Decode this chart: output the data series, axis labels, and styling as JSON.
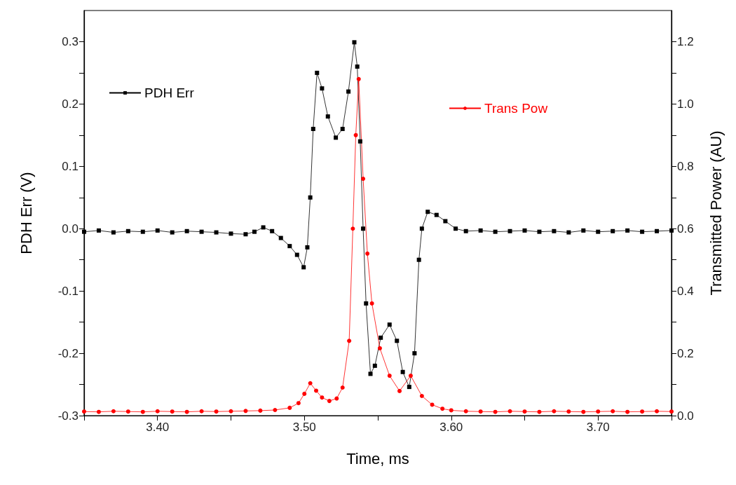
{
  "chart_data": {
    "type": "line",
    "xlabel": "Time, ms",
    "ylabel": "PDH Err (V)",
    "y2label": "Transmitted Power (AU)",
    "xlim": [
      3.35,
      3.75
    ],
    "ylim": [
      -0.3,
      0.35
    ],
    "y2lim": [
      0,
      1.3
    ],
    "xticks": [
      {
        "value": 3.35,
        "label": null
      },
      {
        "value": 3.4,
        "label": "3.40"
      },
      {
        "value": 3.45,
        "label": null
      },
      {
        "value": 3.5,
        "label": "3.50"
      },
      {
        "value": 3.55,
        "label": null
      },
      {
        "value": 3.6,
        "label": "3.60"
      },
      {
        "value": 3.65,
        "label": null
      },
      {
        "value": 3.7,
        "label": "3.70"
      },
      {
        "value": 3.75,
        "label": null
      }
    ],
    "yticks": [
      -0.3,
      {
        "value": -0.25,
        "label": null
      },
      -0.2,
      {
        "value": -0.15,
        "label": null
      },
      -0.1,
      {
        "value": -0.05,
        "label": null
      },
      {
        "value": 0,
        "label": "0.0"
      },
      {
        "value": 0.05,
        "label": null
      },
      0.1,
      {
        "value": 0.15,
        "label": null
      },
      0.2,
      {
        "value": 0.25,
        "label": null
      },
      0.3
    ],
    "y2ticks": [
      {
        "value": 0,
        "label": "0.0"
      },
      {
        "value": 0.1,
        "label": null
      },
      0.2,
      {
        "value": 0.3,
        "label": null
      },
      0.4,
      {
        "value": 0.5,
        "label": null
      },
      0.6,
      {
        "value": 0.7,
        "label": null
      },
      0.8,
      {
        "value": 0.9,
        "label": null
      },
      {
        "value": 1,
        "label": "1.0"
      },
      {
        "value": 1.1,
        "label": null
      },
      1.2
    ],
    "grid": false,
    "legend": "top",
    "line_style": "solid",
    "series": [
      {
        "name": "PDH Err",
        "color": "#000000",
        "marker": "square",
        "x": [
          3.35,
          3.36,
          3.37,
          3.38,
          3.39,
          3.4,
          3.41,
          3.42,
          3.43,
          3.44,
          3.45,
          3.46,
          3.466,
          3.472,
          3.478,
          3.484,
          3.49,
          3.495,
          3.4995,
          3.502,
          3.504,
          3.506,
          3.5086,
          3.512,
          3.516,
          3.5214,
          3.526,
          3.53,
          3.534,
          3.536,
          3.538,
          3.54,
          3.542,
          3.545,
          3.548,
          3.552,
          3.558,
          3.563,
          3.567,
          3.5714,
          3.575,
          3.578,
          3.58,
          3.584,
          3.59,
          3.596,
          3.603,
          3.61,
          3.62,
          3.63,
          3.64,
          3.65,
          3.66,
          3.67,
          3.68,
          3.69,
          3.7,
          3.71,
          3.72,
          3.73,
          3.74,
          3.75
        ],
        "values": [
          -0.005,
          -0.003,
          -0.006,
          -0.004,
          -0.005,
          -0.003,
          -0.006,
          -0.004,
          -0.005,
          -0.006,
          -0.008,
          -0.009,
          -0.005,
          0.002,
          -0.004,
          -0.015,
          -0.028,
          -0.042,
          -0.062,
          -0.03,
          0.05,
          0.16,
          0.25,
          0.225,
          0.18,
          0.146,
          0.16,
          0.22,
          0.299,
          0.26,
          0.14,
          0.0,
          -0.12,
          -0.233,
          -0.22,
          -0.175,
          -0.154,
          -0.18,
          -0.23,
          -0.254,
          -0.2,
          -0.05,
          0.0,
          0.027,
          0.022,
          0.012,
          0.0,
          -0.004,
          -0.003,
          -0.005,
          -0.004,
          -0.003,
          -0.005,
          -0.004,
          -0.006,
          -0.003,
          -0.005,
          -0.004,
          -0.003,
          -0.005,
          -0.004,
          -0.003
        ]
      },
      {
        "name": "Trans Pow",
        "color": "#ff0000",
        "marker": "circle",
        "axis": "y2",
        "x": [
          3.35,
          3.36,
          3.37,
          3.38,
          3.39,
          3.4,
          3.41,
          3.42,
          3.43,
          3.44,
          3.45,
          3.46,
          3.47,
          3.48,
          3.49,
          3.496,
          3.5,
          3.504,
          3.508,
          3.512,
          3.517,
          3.522,
          3.526,
          3.5305,
          3.533,
          3.535,
          3.537,
          3.54,
          3.5429,
          3.546,
          3.5514,
          3.558,
          3.5648,
          3.5724,
          3.58,
          3.587,
          3.594,
          3.6,
          3.61,
          3.62,
          3.63,
          3.64,
          3.65,
          3.66,
          3.67,
          3.68,
          3.69,
          3.7,
          3.71,
          3.72,
          3.73,
          3.74,
          3.75
        ],
        "values": [
          0.013,
          0.012,
          0.014,
          0.013,
          0.012,
          0.014,
          0.013,
          0.012,
          0.014,
          0.013,
          0.014,
          0.015,
          0.016,
          0.018,
          0.025,
          0.04,
          0.07,
          0.104,
          0.08,
          0.058,
          0.047,
          0.055,
          0.09,
          0.24,
          0.6,
          0.9,
          1.08,
          0.76,
          0.52,
          0.36,
          0.216,
          0.128,
          0.079,
          0.128,
          0.063,
          0.035,
          0.022,
          0.017,
          0.014,
          0.013,
          0.012,
          0.014,
          0.013,
          0.012,
          0.014,
          0.013,
          0.012,
          0.013,
          0.014,
          0.012,
          0.013,
          0.014,
          0.013
        ]
      }
    ]
  }
}
